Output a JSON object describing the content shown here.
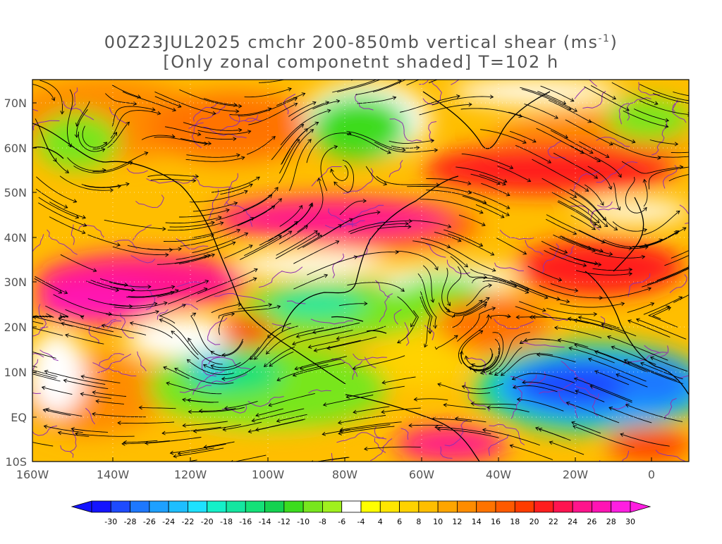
{
  "title": {
    "line1_prefix": "00Z23JUL2025 cmchr 200-850mb vertical shear (ms",
    "line1_superscript": "-1",
    "line1_suffix": ")",
    "line2": "[Only zonal componetnt shaded] T=102 h"
  },
  "axes": {
    "x_ticks": [
      "160W",
      "140W",
      "120W",
      "100W",
      "80W",
      "60W",
      "40W",
      "20W",
      "0"
    ],
    "y_ticks": [
      "70N",
      "60N",
      "50N",
      "40N",
      "30N",
      "20N",
      "10N",
      "EQ",
      "10S"
    ]
  },
  "colorbar": {
    "labels": [
      "-30",
      "-28",
      "-26",
      "-24",
      "-22",
      "-20",
      "-18",
      "-16",
      "-14",
      "-12",
      "-10",
      "-8",
      "-6",
      "-4",
      "4",
      "6",
      "8",
      "10",
      "12",
      "14",
      "16",
      "18",
      "20",
      "22",
      "24",
      "26",
      "28",
      "30"
    ],
    "colors": [
      "#1414ff",
      "#1e4bff",
      "#1e78ff",
      "#1ea0ff",
      "#1ebeff",
      "#1ee1ff",
      "#14f0c8",
      "#14e6a0",
      "#14e178",
      "#14d250",
      "#3cdc1e",
      "#78e61e",
      "#a0f01e",
      "#ffffff",
      "#ffff00",
      "#ffe600",
      "#ffd200",
      "#ffbe00",
      "#ffa500",
      "#ff8c00",
      "#ff7300",
      "#ff5a00",
      "#ff3c00",
      "#ff1e1e",
      "#ff1450",
      "#ff148c",
      "#ff14b4",
      "#ff1ee1"
    ]
  },
  "colors": {
    "streamline": "#000000",
    "contour": "#9030b0",
    "coastline": "#000000",
    "text": "#555555"
  }
}
